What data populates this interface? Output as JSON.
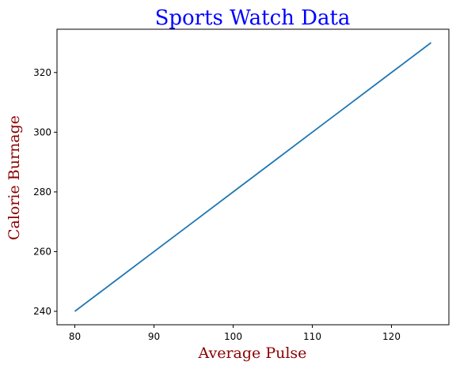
{
  "colors": {
    "title": "#0000ff",
    "axis_label": "#8b0000",
    "line": "#1f77b4",
    "frame": "#000000"
  },
  "chart_data": {
    "type": "line",
    "title": "Sports Watch Data",
    "xlabel": "Average Pulse",
    "ylabel": "Calorie Burnage",
    "x": [
      80,
      85,
      90,
      95,
      100,
      105,
      110,
      115,
      120,
      125
    ],
    "series": [
      {
        "values": [
          240,
          250,
          260,
          270,
          280,
          290,
          300,
          310,
          320,
          330
        ]
      }
    ],
    "xlim": [
      77.75,
      127.25
    ],
    "ylim": [
      235.5,
      334.5
    ],
    "xticks": [
      80,
      90,
      100,
      110,
      120
    ],
    "yticks": [
      240,
      260,
      280,
      300,
      320
    ],
    "grid": false,
    "legend": "none"
  }
}
